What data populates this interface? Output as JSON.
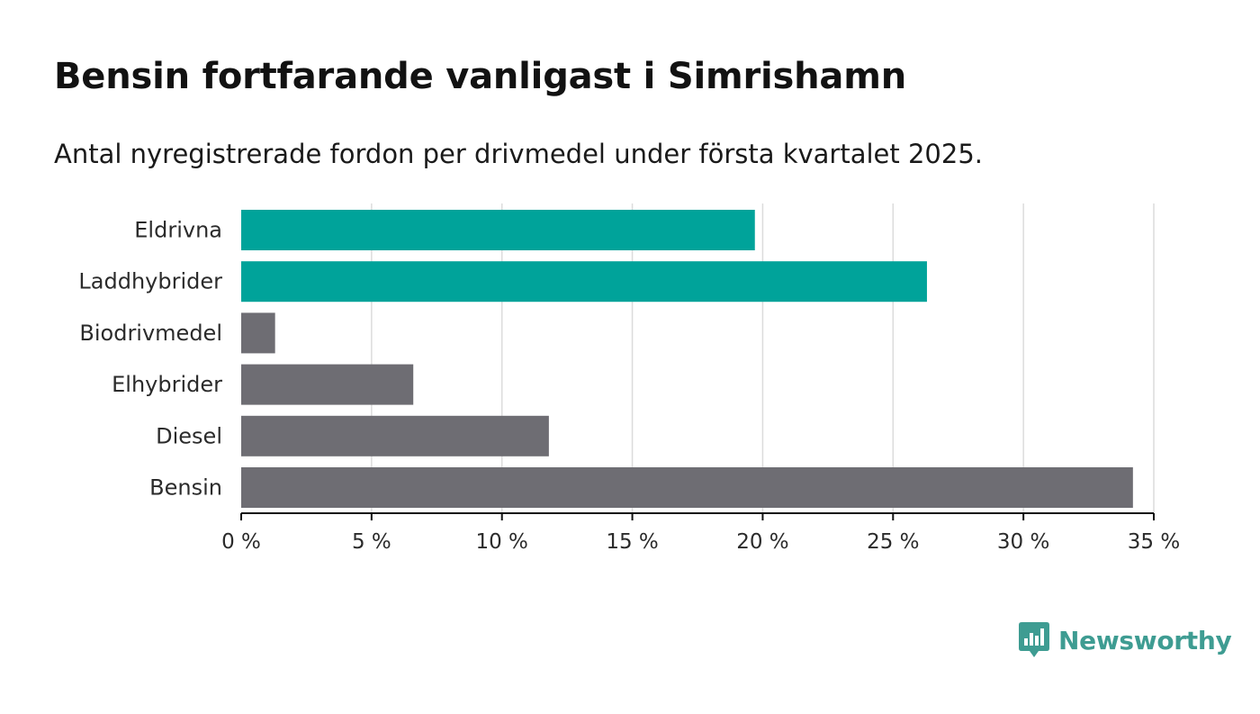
{
  "title": "Bensin fortfarande vanligast i Simrishamn",
  "subtitle": "Antal nyregistrerade fordon per drivmedel under första kvartalet 2025.",
  "brand": "Newsworthy",
  "brand_icon": "bar-chart-speech-bubble-icon",
  "colors": {
    "highlight": "#00a39a",
    "default": "#6e6d73",
    "grid": "#dcdcdc",
    "axis": "#111111",
    "brand": "#3e9c92"
  },
  "chart_data": {
    "type": "bar",
    "orientation": "horizontal",
    "categories": [
      "Eldrivna",
      "Laddhybrider",
      "Biodrivmedel",
      "Elhybrider",
      "Diesel",
      "Bensin"
    ],
    "values": [
      19.7,
      26.3,
      1.3,
      6.6,
      11.8,
      34.2
    ],
    "highlighted": [
      true,
      true,
      false,
      false,
      false,
      false
    ],
    "xlim": [
      0,
      35
    ],
    "ticks": [
      0,
      5,
      10,
      15,
      20,
      25,
      30,
      35
    ],
    "tick_labels": [
      "0 %",
      "5 %",
      "10 %",
      "15 %",
      "20 %",
      "25 %",
      "30 %",
      "35 %"
    ],
    "grid": true,
    "xlabel": "",
    "ylabel": ""
  }
}
